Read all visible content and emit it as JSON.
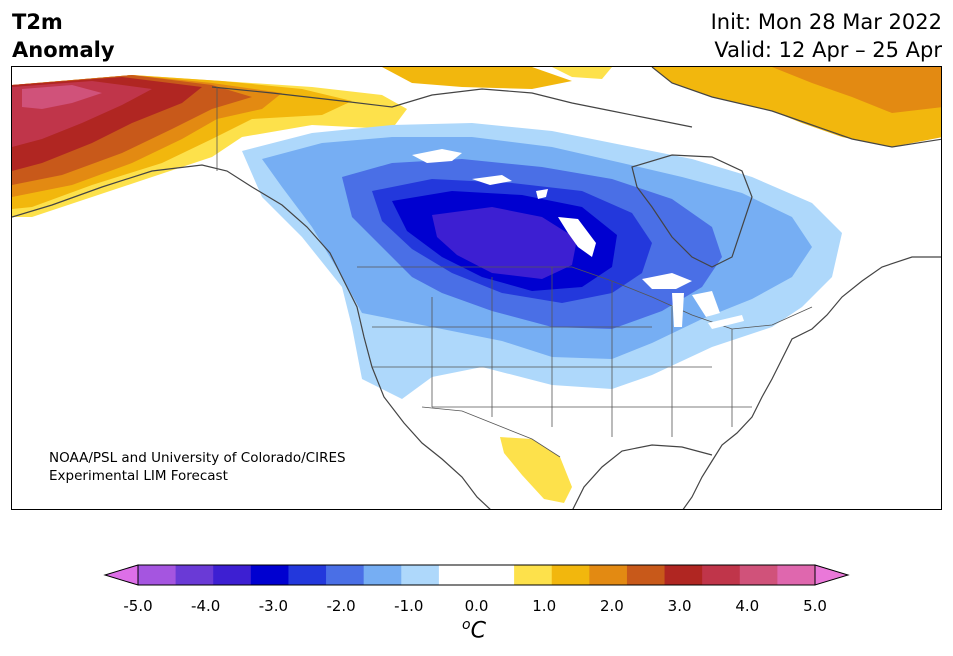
{
  "header": {
    "title_line1": "T2m",
    "title_line2": "Anomaly",
    "init_text": "Init: Mon 28 Mar 2022",
    "valid_text": "Valid: 12 Apr – 25 Apr"
  },
  "credit": {
    "line1": "NOAA/PSL and University of Colorado/CIRES",
    "line2": "Experimental LIM Forecast"
  },
  "colorbar": {
    "colors": [
      "#dd6fe8",
      "#a555e0",
      "#6a3ad6",
      "#3d1fd2",
      "#0000d0",
      "#2338dc",
      "#4a6fe6",
      "#76aef3",
      "#aed8fb",
      "#ffffff",
      "#ffffff",
      "#fde14b",
      "#f2b70d",
      "#e38a12",
      "#c8591a",
      "#b02622",
      "#c0354a",
      "#d0527a",
      "#df67ae",
      "#ea78d9"
    ],
    "tick_labels": [
      "-5.0",
      "-4.0",
      "-3.0",
      "-2.0",
      "-1.0",
      "0.0",
      "1.0",
      "2.0",
      "3.0",
      "4.0",
      "5.0"
    ],
    "unit_base": "C",
    "unit_sup": "o"
  },
  "map": {
    "region": "North America",
    "field": "2m temperature anomaly"
  }
}
